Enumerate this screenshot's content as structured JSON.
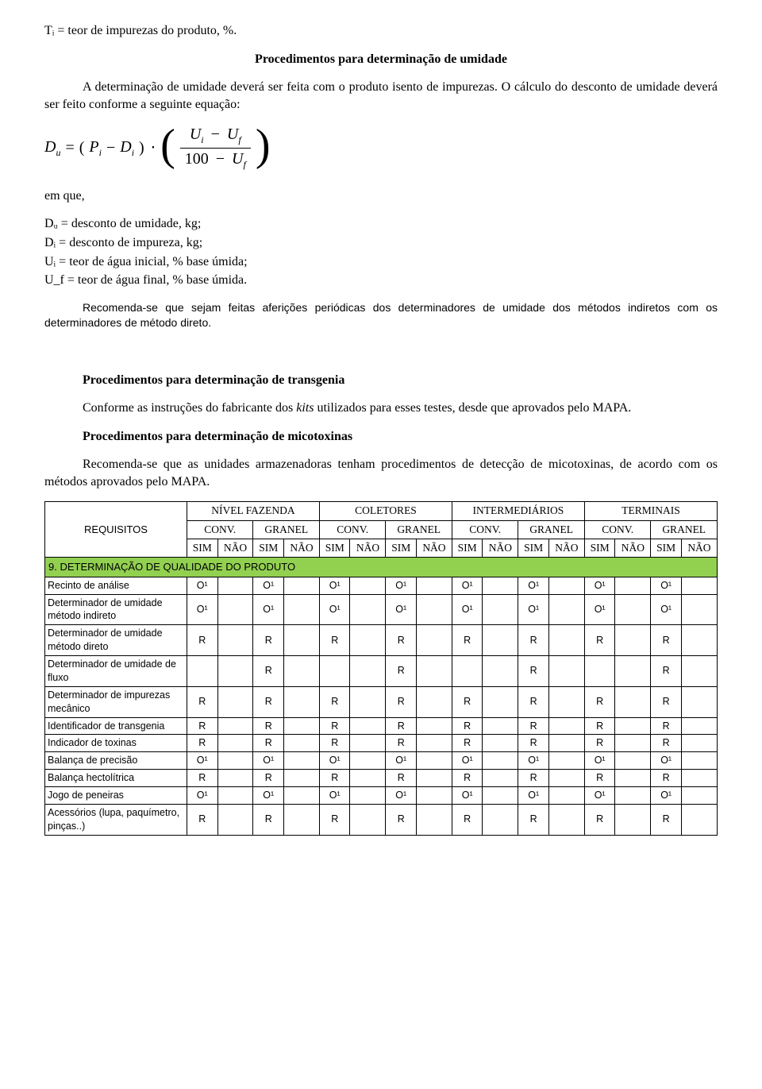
{
  "intro_line": "Tᵢ = teor de impurezas do produto, %.",
  "heading_umidade": "Procedimentos para determinação de umidade",
  "umidade_p1": "A determinação de umidade deverá ser feita com o produto isento de impurezas. O cálculo do desconto de umidade deverá ser feito conforme a seguinte equação:",
  "formula": {
    "lhs_D": "D",
    "lhs_sub": "u",
    "eq": "=",
    "open": "(",
    "P": "P",
    "Pi": "i",
    "minus": "−",
    "D2": "D",
    "Di": "i",
    "close": ")",
    "dot": "⋅",
    "lparen": "(",
    "rparen": ")",
    "U": "U",
    "Ui": "i",
    "Uf": "f",
    "hundred": "100"
  },
  "em_que": "em que,",
  "defs": {
    "l1": "Dᵤ = desconto de umidade, kg;",
    "l2": "Dᵢ = desconto de impureza, kg;",
    "l3": "Uᵢ = teor de água inicial, % base úmida;",
    "l4": "U_f = teor de água final, % base úmida."
  },
  "umidade_p2": "Recomenda-se que sejam feitas aferições periódicas dos determinadores de umidade dos métodos indiretos com os determinadores de método direto.",
  "heading_transgenia": "Procedimentos para determinação de transgenia",
  "transgenia_p_pre": "Conforme as instruções do fabricante dos ",
  "transgenia_kits": "kits",
  "transgenia_p_post": " utilizados para esses testes, desde que aprovados pelo MAPA.",
  "heading_micotoxinas": "Procedimentos para determinação de micotoxinas",
  "micotoxinas_p": "Recomenda-se que as unidades armazenadoras tenham procedimentos de detecção de micotoxinas, de acordo com os métodos aprovados pelo MAPA.",
  "table": {
    "requisitos_label": "REQUISITOS",
    "group_headers": [
      "NÍVEL FAZENDA",
      "COLETORES",
      "INTERMEDIÁRIOS",
      "TERMINAIS"
    ],
    "sub_headers": [
      "CONV.",
      "GRANEL"
    ],
    "sim": "SIM",
    "nao": "NÃO",
    "section_title": "9. DETERMINAÇÃO DE QUALIDADE DO PRODUTO",
    "section_bg": "#92d050",
    "val_O1": "O¹",
    "val_R": "R",
    "rows": [
      {
        "label": "Recinto de análise",
        "pattern": "O1"
      },
      {
        "label": "Determinador de umidade método indireto",
        "pattern": "O1"
      },
      {
        "label": "Determinador de umidade método direto",
        "pattern": "R"
      },
      {
        "label": "Determinador de umidade de fluxo",
        "pattern": "R_granel"
      },
      {
        "label": "Determinador de impurezas mecânico",
        "pattern": "R"
      },
      {
        "label": "Identificador de transgenia",
        "pattern": "R"
      },
      {
        "label": "Indicador de toxinas",
        "pattern": "R"
      },
      {
        "label": "Balança de precisão",
        "pattern": "O1"
      },
      {
        "label": "Balança hectolítrica",
        "pattern": "R"
      },
      {
        "label": "Jogo de peneiras",
        "pattern": "O1"
      },
      {
        "label": "Acessórios (lupa, paquímetro, pinças..)",
        "pattern": "R"
      }
    ]
  },
  "colors": {
    "text": "#000000",
    "bg": "#ffffff",
    "section_row": "#92d050"
  }
}
